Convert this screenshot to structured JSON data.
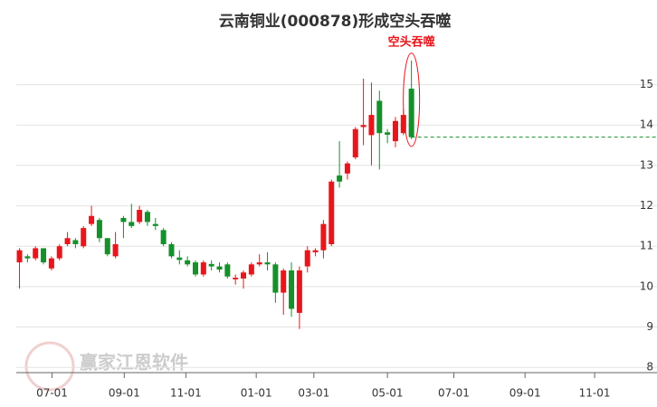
{
  "chart_data": {
    "type": "candlestick",
    "title": "云南铜业(000878)形成空头吞噬",
    "annotation": "空头吞噬",
    "watermark": "赢家江恩软件",
    "up_color": "#e8161b",
    "down_color": "#15902a",
    "grid": true,
    "x": [
      0,
      1,
      2,
      3,
      4,
      5,
      6,
      7,
      8,
      9,
      10,
      11,
      12,
      13,
      14,
      15,
      16,
      17,
      18,
      19,
      20,
      21,
      22,
      23,
      24,
      25,
      26,
      27,
      28,
      29,
      30,
      31,
      32,
      33,
      34,
      35,
      36,
      37,
      38,
      39,
      40,
      41,
      42,
      43,
      44,
      45,
      46,
      47,
      48,
      49
    ],
    "open": [
      10.6,
      10.75,
      10.7,
      10.95,
      10.45,
      10.7,
      11.05,
      11.15,
      11.0,
      11.55,
      11.65,
      11.2,
      10.75,
      11.7,
      11.6,
      11.6,
      11.85,
      11.55,
      11.4,
      11.05,
      10.72,
      10.65,
      10.6,
      10.3,
      10.56,
      10.5,
      10.55,
      10.18,
      10.2,
      10.3,
      10.55,
      10.6,
      10.55,
      9.85,
      10.4,
      9.35,
      10.5,
      10.85,
      10.9,
      11.05,
      12.75,
      12.8,
      13.2,
      13.95,
      13.75,
      14.6,
      13.82,
      13.6,
      13.8,
      14.9
    ],
    "high": [
      10.95,
      10.8,
      11.0,
      10.95,
      10.75,
      11.05,
      11.35,
      11.2,
      11.5,
      12.0,
      11.7,
      11.2,
      11.35,
      11.75,
      12.05,
      12.0,
      11.9,
      11.7,
      11.45,
      11.1,
      10.9,
      10.75,
      10.65,
      10.65,
      10.65,
      10.6,
      10.6,
      10.3,
      10.4,
      10.6,
      10.8,
      10.85,
      10.6,
      10.45,
      10.6,
      10.5,
      11.0,
      10.95,
      11.65,
      12.65,
      13.6,
      13.1,
      13.95,
      15.15,
      15.05,
      14.85,
      13.9,
      14.2,
      14.4,
      15.6
    ],
    "low": [
      9.95,
      10.6,
      10.65,
      10.55,
      10.4,
      10.65,
      11.0,
      10.95,
      10.95,
      11.5,
      11.1,
      10.75,
      10.7,
      11.2,
      11.45,
      11.55,
      11.5,
      11.4,
      11.0,
      10.7,
      10.55,
      10.5,
      10.25,
      10.25,
      10.4,
      10.35,
      10.2,
      10.05,
      9.95,
      10.25,
      10.5,
      10.4,
      9.6,
      9.3,
      9.25,
      8.95,
      10.35,
      10.75,
      10.7,
      11.0,
      12.45,
      12.65,
      13.15,
      13.5,
      13.0,
      12.9,
      13.55,
      13.45,
      13.75,
      13.65
    ],
    "close": [
      10.9,
      10.7,
      10.95,
      10.6,
      10.7,
      11.0,
      11.2,
      11.05,
      11.45,
      11.75,
      11.2,
      10.8,
      11.05,
      11.6,
      11.5,
      11.9,
      11.6,
      11.5,
      11.05,
      10.75,
      10.66,
      10.55,
      10.3,
      10.6,
      10.5,
      10.42,
      10.25,
      10.22,
      10.35,
      10.55,
      10.6,
      10.55,
      9.85,
      10.4,
      9.45,
      10.4,
      10.9,
      10.9,
      11.55,
      12.6,
      12.6,
      13.05,
      13.9,
      14.0,
      14.25,
      13.8,
      13.76,
      14.1,
      14.25,
      13.7
    ],
    "xlim": [
      -0.4,
      79.7
    ],
    "xticks": [
      {
        "value": 4.07,
        "label": "07-01"
      },
      {
        "value": 13.1,
        "label": "09-01"
      },
      {
        "value": 20.8,
        "label": "11-01"
      },
      {
        "value": 29.6,
        "label": "01-01"
      },
      {
        "value": 36.8,
        "label": "03-01"
      },
      {
        "value": 46.0,
        "label": "05-01"
      },
      {
        "value": 54.3,
        "label": "07-01"
      },
      {
        "value": 63.2,
        "label": "09-01"
      },
      {
        "value": 71.9,
        "label": "11-01"
      }
    ],
    "ylim": [
      7.87,
      16.2
    ],
    "yticks": [
      8,
      9,
      10,
      11,
      12,
      13,
      14,
      15
    ]
  }
}
